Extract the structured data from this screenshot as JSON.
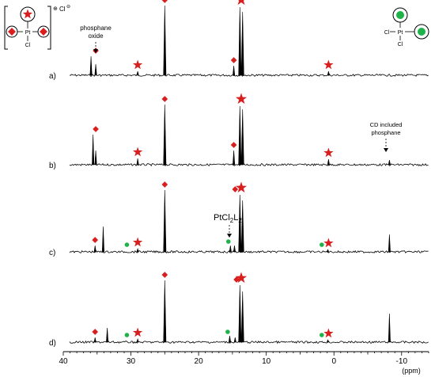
{
  "chart_data": {
    "type": "line",
    "xlabel": "(ppm)",
    "x_reversed": true,
    "xlim": [
      40,
      -14
    ],
    "xticks": [
      40,
      30,
      20,
      10,
      0,
      -10
    ],
    "colors": {
      "trace": "#000000",
      "star": "#d81e1e",
      "diamond": "#d81e1e",
      "dot": "#1fb24a"
    },
    "series": [
      {
        "name": "a)",
        "peaks": [
          {
            "ppm": 35.9,
            "height": 24,
            "shape": "triangle"
          },
          {
            "ppm": 35.2,
            "height": 14
          },
          {
            "ppm": 29.0,
            "height": 5
          },
          {
            "ppm": 25.0,
            "height": 88
          },
          {
            "ppm": 14.8,
            "height": 12
          },
          {
            "ppm": 13.9,
            "height": 86
          },
          {
            "ppm": 13.5,
            "height": 80
          },
          {
            "ppm": 0.8,
            "height": 5
          }
        ],
        "markers": [
          {
            "ppm": 35.2,
            "type": "diamond"
          },
          {
            "ppm": 29.0,
            "type": "star"
          },
          {
            "ppm": 25.0,
            "type": "diamond"
          },
          {
            "ppm": 14.8,
            "type": "diamond"
          },
          {
            "ppm": 13.7,
            "type": "star"
          },
          {
            "ppm": 0.8,
            "type": "star"
          }
        ]
      },
      {
        "name": "b)",
        "peaks": [
          {
            "ppm": 35.6,
            "height": 38
          },
          {
            "ppm": 35.2,
            "height": 18
          },
          {
            "ppm": 29.0,
            "height": 8
          },
          {
            "ppm": 25.0,
            "height": 76
          },
          {
            "ppm": 14.8,
            "height": 18
          },
          {
            "ppm": 13.9,
            "height": 74
          },
          {
            "ppm": 13.5,
            "height": 70
          },
          {
            "ppm": 0.8,
            "height": 7
          },
          {
            "ppm": -8.2,
            "height": 6
          }
        ],
        "markers": [
          {
            "ppm": 35.2,
            "type": "diamond"
          },
          {
            "ppm": 29.0,
            "type": "star"
          },
          {
            "ppm": 25.0,
            "type": "diamond"
          },
          {
            "ppm": 14.8,
            "type": "diamond"
          },
          {
            "ppm": 13.7,
            "type": "star"
          },
          {
            "ppm": 0.8,
            "type": "star"
          }
        ]
      },
      {
        "name": "c)",
        "peaks": [
          {
            "ppm": 35.3,
            "height": 8
          },
          {
            "ppm": 34.1,
            "height": 32
          },
          {
            "ppm": 29.0,
            "height": 4
          },
          {
            "ppm": 25.0,
            "height": 78
          },
          {
            "ppm": 15.3,
            "height": 8
          },
          {
            "ppm": 14.7,
            "height": 8
          },
          {
            "ppm": 13.9,
            "height": 72
          },
          {
            "ppm": 13.5,
            "height": 65
          },
          {
            "ppm": 0.9,
            "height": 3
          },
          {
            "ppm": -8.2,
            "height": 22
          }
        ],
        "markers": [
          {
            "ppm": 35.3,
            "type": "diamond"
          },
          {
            "ppm": 30.6,
            "type": "dot"
          },
          {
            "ppm": 29.0,
            "type": "star"
          },
          {
            "ppm": 25.0,
            "type": "diamond"
          },
          {
            "ppm": 15.6,
            "type": "dot"
          },
          {
            "ppm": 14.6,
            "type": "diamond"
          },
          {
            "ppm": 13.7,
            "type": "star"
          },
          {
            "ppm": 1.8,
            "type": "dot"
          },
          {
            "ppm": 0.8,
            "type": "star"
          }
        ]
      },
      {
        "name": "d)",
        "peaks": [
          {
            "ppm": 35.3,
            "height": 6
          },
          {
            "ppm": 33.5,
            "height": 18
          },
          {
            "ppm": 29.0,
            "height": 4
          },
          {
            "ppm": 25.0,
            "height": 78
          },
          {
            "ppm": 15.4,
            "height": 8
          },
          {
            "ppm": 14.6,
            "height": 6
          },
          {
            "ppm": 13.9,
            "height": 72
          },
          {
            "ppm": 13.5,
            "height": 64
          },
          {
            "ppm": 0.9,
            "height": 3
          },
          {
            "ppm": -8.2,
            "height": 36
          }
        ],
        "markers": [
          {
            "ppm": 35.3,
            "type": "diamond"
          },
          {
            "ppm": 30.6,
            "type": "dot"
          },
          {
            "ppm": 29.0,
            "type": "star"
          },
          {
            "ppm": 25.0,
            "type": "diamond"
          },
          {
            "ppm": 15.7,
            "type": "dot"
          },
          {
            "ppm": 14.4,
            "type": "diamond"
          },
          {
            "ppm": 13.7,
            "type": "star"
          },
          {
            "ppm": 1.8,
            "type": "dot"
          },
          {
            "ppm": 0.8,
            "type": "star"
          }
        ]
      }
    ],
    "annotations": [
      {
        "text_lines": [
          "phosphane",
          "oxide"
        ],
        "spectrum": "a)",
        "ppm": 35.9
      },
      {
        "text_lines": [
          "CD included",
          "phosphane"
        ],
        "spectrum": "b)",
        "ppm": -8.2
      },
      {
        "text": "PtCl",
        "sub1": "2",
        "text2": "L",
        "sub2": "2",
        "spectrum": "c)",
        "ppm": 15.0
      }
    ]
  },
  "structures": {
    "left": {
      "metal": "Pt",
      "ligand": "Cl",
      "counterion": "Cl",
      "charge_sign": "⊕",
      "anion_sign": "⊖"
    },
    "right": {
      "metal": "Pt",
      "ligand_left": "Cl",
      "ligand_bottom": "Cl"
    }
  }
}
